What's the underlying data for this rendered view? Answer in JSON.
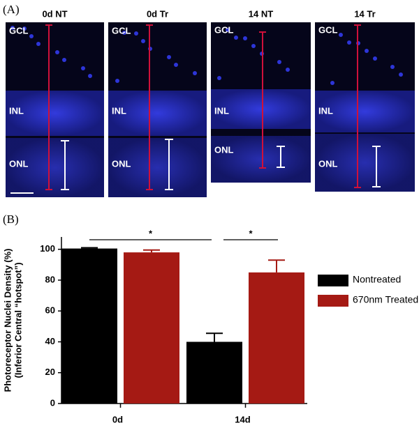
{
  "figure_label_a": "(A)",
  "figure_label_b": "(B)",
  "panels": [
    {
      "title": "0d NT",
      "layers": [
        "GCL",
        "INL",
        "ONL"
      ]
    },
    {
      "title": "0d Tr",
      "layers": [
        "GCL",
        "INL",
        "ONL"
      ]
    },
    {
      "title": "14 NT",
      "layers": [
        "GCL",
        "INL",
        "ONL"
      ]
    },
    {
      "title": "14 Tr",
      "layers": [
        "GCL",
        "INL",
        "ONL"
      ]
    }
  ],
  "chart_data": {
    "type": "bar",
    "ylabel": [
      "Photoreceptor Nuclei Density (%)",
      "(Inferior Central “hotspot”)"
    ],
    "categories": [
      "0d",
      "14d"
    ],
    "series": [
      {
        "name": "Nontreated",
        "color": "#000000",
        "values": [
          100.5,
          40
        ],
        "errors": [
          0.5,
          5.5
        ]
      },
      {
        "name": "670nm Treated",
        "color": "#a51a14",
        "values": [
          98,
          85
        ],
        "errors": [
          1.5,
          8
        ]
      }
    ],
    "ylim": [
      0,
      108
    ],
    "yticks": [
      0,
      20,
      40,
      60,
      80,
      100
    ],
    "annotations": [
      "*",
      "*"
    ]
  }
}
